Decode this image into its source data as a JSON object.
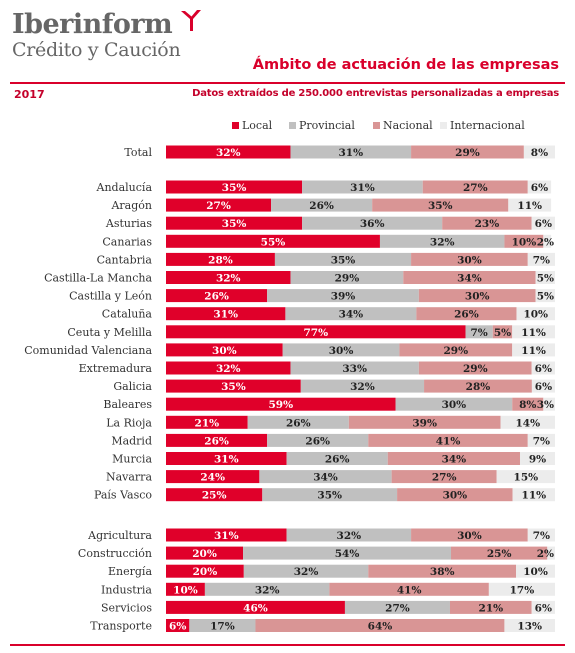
{
  "header": {
    "brand": "Iberinform",
    "brand_sub": "Crédito y Caución",
    "title": "Ámbito de actuación de las empresas",
    "year": "2017",
    "subtitle": "Datos extraídos de 250.000 entrevistas personalizadas a empresas"
  },
  "colors": {
    "accent": "#d9002b",
    "local": "#e0002a",
    "provincial": "#c0c0c0",
    "nacional": "#d99595",
    "internacional": "#ececec"
  },
  "chart_data": {
    "type": "bar",
    "orientation": "horizontal",
    "stacked": true,
    "normalized": true,
    "legend_position": "top",
    "grid": false,
    "xlim": [
      0,
      100
    ],
    "series": [
      {
        "name": "Local"
      },
      {
        "name": "Provincial"
      },
      {
        "name": "Nacional"
      },
      {
        "name": "Internacional"
      }
    ],
    "groups": [
      {
        "rows": [
          {
            "label": "Total",
            "values": [
              32,
              31,
              29,
              8
            ]
          }
        ]
      },
      {
        "rows": [
          {
            "label": "Andalucía",
            "values": [
              35,
              31,
              27,
              6
            ]
          },
          {
            "label": "Aragón",
            "values": [
              27,
              26,
              35,
              11
            ]
          },
          {
            "label": "Asturias",
            "values": [
              35,
              36,
              23,
              6
            ]
          },
          {
            "label": "Canarias",
            "values": [
              55,
              32,
              10,
              2
            ]
          },
          {
            "label": "Cantabria",
            "values": [
              28,
              35,
              30,
              7
            ]
          },
          {
            "label": "Castilla-La Mancha",
            "values": [
              32,
              29,
              34,
              5
            ]
          },
          {
            "label": "Castilla y León",
            "values": [
              26,
              39,
              30,
              5
            ]
          },
          {
            "label": "Cataluña",
            "values": [
              31,
              34,
              26,
              10
            ]
          },
          {
            "label": "Ceuta y Melilla",
            "values": [
              77,
              7,
              5,
              11
            ]
          },
          {
            "label": "Comunidad Valenciana",
            "values": [
              30,
              30,
              29,
              11
            ]
          },
          {
            "label": "Extremadura",
            "values": [
              32,
              33,
              29,
              6
            ]
          },
          {
            "label": "Galicia",
            "values": [
              35,
              32,
              28,
              6
            ]
          },
          {
            "label": "Baleares",
            "values": [
              59,
              30,
              8,
              3
            ]
          },
          {
            "label": "La Rioja",
            "values": [
              21,
              26,
              39,
              14
            ]
          },
          {
            "label": "Madrid",
            "values": [
              26,
              26,
              41,
              7
            ]
          },
          {
            "label": "Murcia",
            "values": [
              31,
              26,
              34,
              9
            ]
          },
          {
            "label": "Navarra",
            "values": [
              24,
              34,
              27,
              15
            ]
          },
          {
            "label": "País Vasco",
            "values": [
              25,
              35,
              30,
              11
            ]
          }
        ]
      },
      {
        "rows": [
          {
            "label": "Agricultura",
            "values": [
              31,
              32,
              30,
              7
            ]
          },
          {
            "label": "Construcción",
            "values": [
              20,
              54,
              25,
              2
            ]
          },
          {
            "label": "Energía",
            "values": [
              20,
              32,
              38,
              10
            ]
          },
          {
            "label": "Industria",
            "values": [
              10,
              32,
              41,
              17
            ]
          },
          {
            "label": "Servicios",
            "values": [
              46,
              27,
              21,
              6
            ]
          },
          {
            "label": "Transporte",
            "values": [
              6,
              17,
              64,
              13
            ]
          }
        ]
      }
    ]
  }
}
